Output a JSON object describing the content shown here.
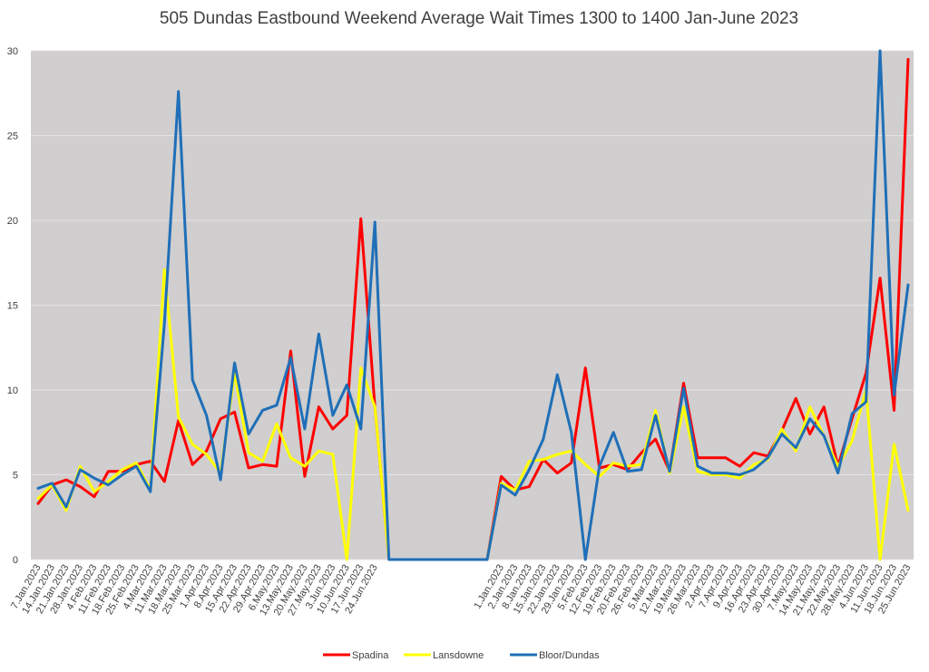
{
  "chart_data": {
    "type": "line",
    "title": "505 Dundas Eastbound Weekend Average Wait Times 1300 to 1400 Jan-June 2023",
    "xlabel": "",
    "ylabel": "",
    "ylim": [
      0,
      30
    ],
    "yticks": [
      0,
      5,
      10,
      15,
      20,
      25,
      30
    ],
    "grid": true,
    "legend_position": "bottom",
    "background_color": "#d0cece",
    "categories": [
      "7.Jan.2023",
      "14.Jan.2023",
      "21.Jan.2023",
      "28.Jan.2023",
      "4.Feb.2023",
      "11.Feb.2023",
      "18.Feb.2023",
      "25.Feb.2023",
      "4.Mar.2023",
      "11.Mar.2023",
      "18.Mar.2023",
      "25.Mar.2023",
      "1.Apr.2023",
      "8.Apr.2023",
      "15.Apr.2023",
      "22.Apr.2023",
      "29.Apr.2023",
      "6.May.2023",
      "13.May.2023",
      "20.May.2023",
      "27.May.2023",
      "3.Jun.2023",
      "10.Jun.2023",
      "17.Jun.2023",
      "24.Jun.2023",
      "",
      "",
      "",
      "",
      "",
      "",
      "",
      "",
      "1.Jan.2023",
      "2.Jan.2023",
      "8.Jan.2023",
      "15.Jan.2023",
      "22.Jan.2023",
      "29.Jan.2023",
      "5.Feb.2023",
      "12.Feb.2023",
      "19.Feb.2023",
      "20.Feb.2023",
      "26.Feb.2023",
      "5.Mar.2023",
      "12.Mar.2023",
      "19.Mar.2023",
      "26.Mar.2023",
      "2.Apr.2023",
      "7.Apr.2023",
      "9.Apr.2023",
      "16.Apr.2023",
      "23.Apr.2023",
      "30.Apr.2023",
      "7.May.2023",
      "14.May.2023",
      "21.May.2023",
      "22.May.2023",
      "28.May.2023",
      "4.Jun.2023",
      "11.Jun.2023",
      "18.Jun.2023",
      "25.Jun.2023"
    ],
    "series": [
      {
        "name": "Spadina",
        "color": "#ff0000",
        "values": [
          3.3,
          4.4,
          4.7,
          4.3,
          3.7,
          5.2,
          5.2,
          5.6,
          5.8,
          4.6,
          8.2,
          5.6,
          6.4,
          8.3,
          8.7,
          5.4,
          5.6,
          5.5,
          12.3,
          4.9,
          9.0,
          7.7,
          8.5,
          20.1,
          9.0,
          0,
          0,
          0,
          0,
          0,
          0,
          0,
          0,
          4.9,
          4.1,
          4.3,
          5.9,
          5.1,
          5.7,
          11.3,
          5.4,
          5.6,
          5.3,
          6.3,
          7.1,
          5.2,
          10.4,
          6.0,
          6.0,
          6.0,
          5.5,
          6.3,
          6.1,
          7.6,
          9.5,
          7.4,
          9.0,
          5.5,
          8.3,
          11.0,
          16.6,
          8.8,
          29.5
        ]
      },
      {
        "name": "Lansdowne",
        "color": "#ffff00",
        "values": [
          3.6,
          4.4,
          2.9,
          5.5,
          4.0,
          4.6,
          5.3,
          5.7,
          4.1,
          17.1,
          8.4,
          6.8,
          6.2,
          5.1,
          11.0,
          6.3,
          5.8,
          8.0,
          6.0,
          5.5,
          6.4,
          6.2,
          0,
          11.3,
          9.0,
          0,
          0,
          0,
          0,
          0,
          0,
          0,
          0,
          4.5,
          4.1,
          5.8,
          5.9,
          6.2,
          6.4,
          5.6,
          4.9,
          5.7,
          5.5,
          5.6,
          8.8,
          5.1,
          9.0,
          5.2,
          5.0,
          5.0,
          4.8,
          5.6,
          5.9,
          7.7,
          6.4,
          9.0,
          7.3,
          5.5,
          7.0,
          10.0,
          0,
          6.8,
          2.9
        ]
      },
      {
        "name": "Bloor/Dundas",
        "color": "#1f6fb8",
        "values": [
          4.2,
          4.5,
          3.1,
          5.3,
          4.8,
          4.4,
          5.0,
          5.5,
          4.0,
          13.9,
          27.6,
          10.6,
          8.5,
          4.7,
          11.6,
          7.4,
          8.8,
          9.1,
          11.9,
          7.7,
          13.3,
          8.5,
          10.3,
          7.7,
          19.9,
          0,
          0,
          0,
          0,
          0,
          0,
          0,
          0,
          4.4,
          3.8,
          5.3,
          7.1,
          10.9,
          7.5,
          0,
          5.5,
          7.5,
          5.2,
          5.3,
          8.5,
          5.2,
          10.1,
          5.5,
          5.1,
          5.1,
          5.0,
          5.3,
          6.0,
          7.4,
          6.6,
          8.3,
          7.3,
          5.1,
          8.6,
          9.3,
          30.0,
          9.7,
          16.2
        ]
      }
    ]
  }
}
